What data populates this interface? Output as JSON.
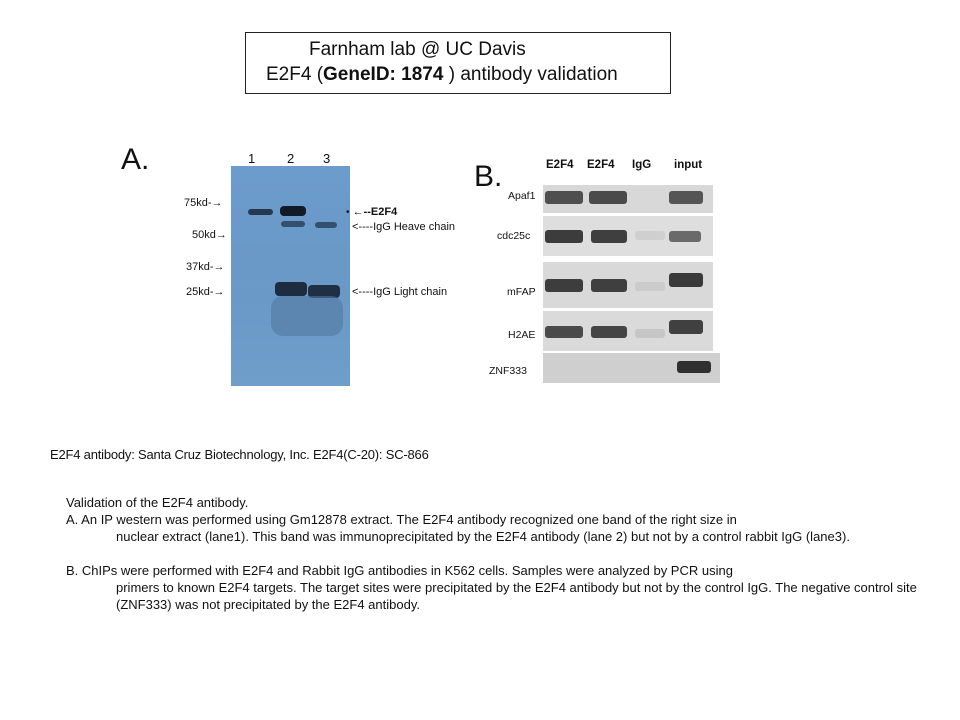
{
  "title": {
    "line1": "Farnham lab @ UC Davis",
    "line2_prefix": "E2F4 (",
    "line2_gene": "GeneID: 1874",
    "line2_suffix": " ) antibody validation"
  },
  "panelA": {
    "letter": "A.",
    "lanes": [
      "1",
      "2",
      "3"
    ],
    "markers": [
      "75kd-→",
      "50kd→",
      "37kd-→",
      "25kd-→"
    ],
    "annotations": [
      "←--E2F4",
      "<----IgG Heave chain",
      "<----IgG Light chain"
    ]
  },
  "panelB": {
    "letter": "B.",
    "columns": [
      "E2F4",
      "E2F4",
      "IgG",
      "input"
    ],
    "rows": [
      "Apaf1",
      "cdc25c",
      "mFAP",
      "H2AE",
      "ZNF333"
    ]
  },
  "antibody_line": "E2F4 antibody: Santa Cruz Biotechnology, Inc. E2F4(C-20): SC-866",
  "description": {
    "heading": "Validation of the E2F4 antibody.",
    "paraA_line1": "A. An IP western was performed using Gm12878 extract. The E2F4 antibody recognized one band of the right size in",
    "paraA_cont": "nuclear extract (lane1). This band was immunoprecipitated by the E2F4 antibody (lane 2) but not by a control rabbit IgG (lane3).",
    "paraB_line1": "B. ChIPs were performed with E2F4 and Rabbit IgG antibodies in K562 cells. Samples were analyzed by PCR using",
    "paraB_cont": "primers to known E2F4 targets. The target sites were precipitated by the E2F4 antibody but not by the control IgG.  The negative control site (ZNF333) was not precipitated by the E2F4 antibody."
  }
}
